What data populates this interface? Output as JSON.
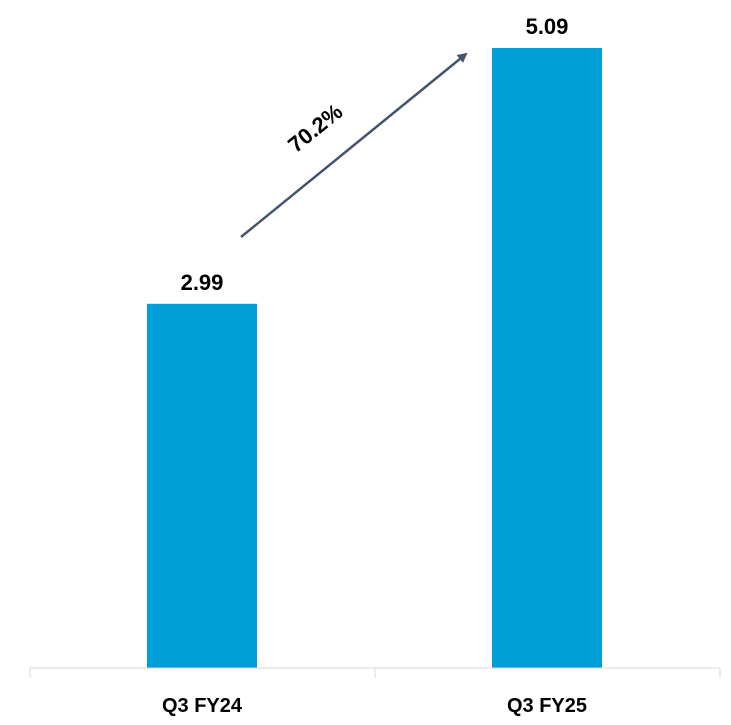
{
  "chart_data": {
    "type": "bar",
    "categories": [
      "Q3 FY24",
      "Q3 FY25"
    ],
    "values": [
      2.99,
      5.09
    ],
    "value_labels": [
      "2.99",
      "5.09"
    ],
    "annotation": "70.2%",
    "bar_color": "#009FD9",
    "arrow_color": "#44546A",
    "axis_color": "#D9D9D9",
    "ylim": [
      0,
      5.09
    ],
    "grid": false,
    "title": "",
    "xlabel": "",
    "ylabel": ""
  }
}
